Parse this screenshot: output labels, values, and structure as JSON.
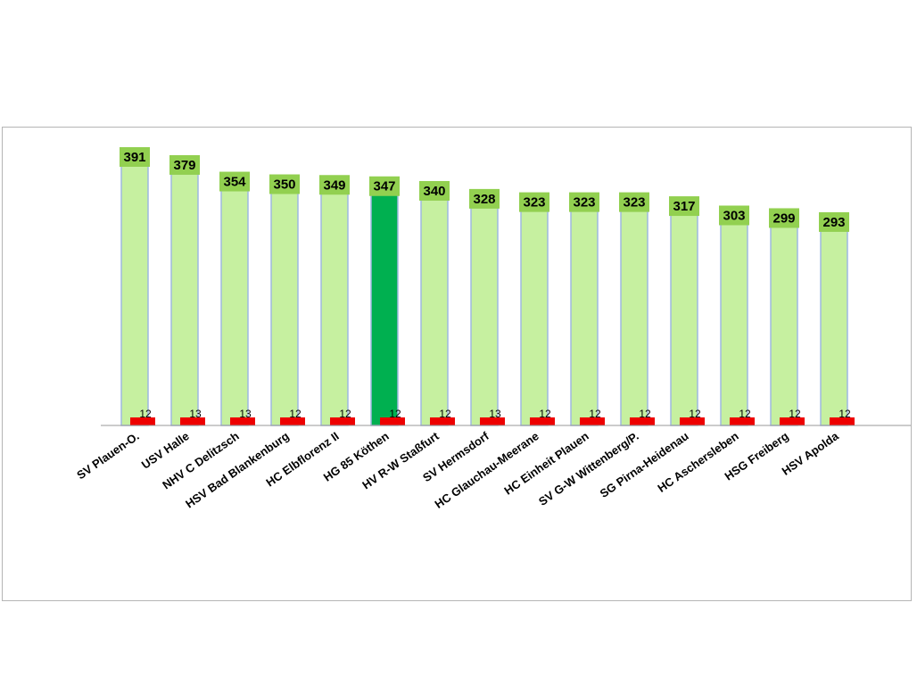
{
  "chart_data": {
    "type": "bar",
    "title": "",
    "xlabel": "",
    "ylabel": "",
    "ylim": [
      0,
      391
    ],
    "grid": false,
    "legend": "none",
    "categories": [
      "SV Plauen-O.",
      "USV Halle",
      "NHV C Delitzsch",
      "HSV Bad Blankenburg",
      "HC Elbflorenz II",
      "HG 85 Köthen",
      "HV R-W Staßfurt",
      "SV Hermsdorf",
      "HC Glauchau-Meerane",
      "HC Einheit Plauen",
      "SV G-W Wittenberg/P.",
      "SG Pirna-Heidenau",
      "HC Aschersleben",
      "HSG Freiberg",
      "HSV Apolda"
    ],
    "series": [
      {
        "values": [
          391,
          379,
          354,
          350,
          349,
          347,
          340,
          328,
          323,
          323,
          323,
          317,
          303,
          299,
          293
        ]
      },
      {
        "values": [
          12,
          13,
          13,
          12,
          12,
          12,
          12,
          13,
          12,
          12,
          12,
          12,
          12,
          12,
          12
        ]
      }
    ],
    "highlight_index": 5,
    "colors": {
      "bar": "#c6f0a0",
      "bar_border": "#9fb8e0",
      "highlight": "#00b050",
      "value_label_bg": "#92d050",
      "secondary": "#ee0000",
      "axis": "#999999"
    }
  }
}
